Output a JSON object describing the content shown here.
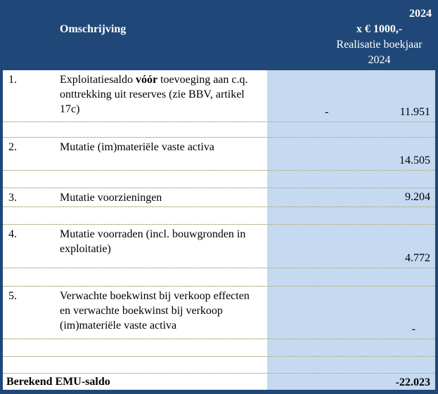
{
  "header": {
    "description_column_label": "Omschrijving",
    "year": "2024",
    "unit": "x € 1000,-",
    "period_line1": "Realisatie boekjaar",
    "period_line2": "2024"
  },
  "rows": [
    {
      "num": "1.",
      "desc_prefix": "Exploitatiesaldo ",
      "desc_bold": "vóór",
      "desc_suffix": " toevoeging aan c.q.\nonttrekking uit reserves (zie BBV, artikel\n17c)",
      "sign": "-",
      "value": "11.951"
    },
    {
      "num": "2.",
      "desc": "Mutatie (im)materiële vaste activa",
      "value": "14.505"
    },
    {
      "num": "3.",
      "desc": "Mutatie voorzieningen",
      "value": "9.204"
    },
    {
      "num": "4.",
      "desc": "Mutatie voorraden (incl. bouwgronden in\nexploitatie)",
      "value": "4.772"
    },
    {
      "num": "5.",
      "desc": "Verwachte boekwinst bij verkoop effecten\nen verwachte boekwinst bij verkoop\n(im)materiële vaste activa",
      "value": "-"
    }
  ],
  "footer": {
    "label": "Berekend EMU-saldo",
    "value": "-22.023"
  },
  "colors": {
    "header_bg": "#1F4878",
    "header_text": "#FFFFFF",
    "value_col_bg": "#C5D9F1",
    "separator": "#6F7B34",
    "border": "#1F4878",
    "text": "#000000"
  }
}
